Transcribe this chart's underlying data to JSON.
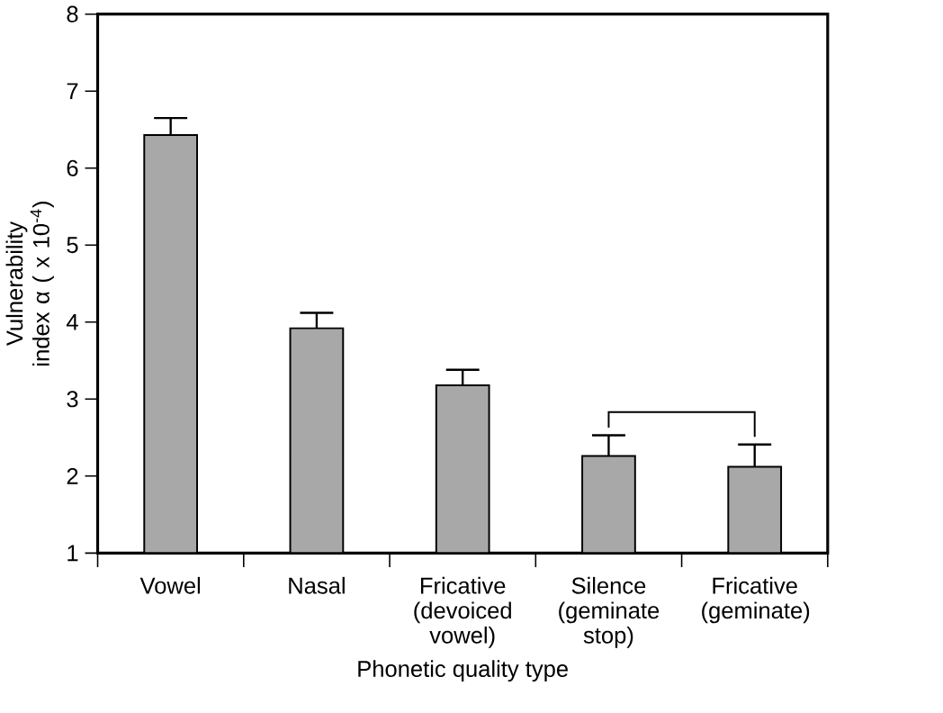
{
  "chart_data": {
    "type": "bar",
    "xlabel": "Phonetic quality type",
    "ylabel": "Vulnerability index α ( x 10$^{-4}$)",
    "categories": [
      "Vowel",
      "Nasal",
      "Fricative (devoiced vowel)",
      "Silence (geminate stop)",
      "Fricative (geminate)"
    ],
    "values": [
      6.43,
      3.92,
      3.18,
      2.26,
      2.12
    ],
    "errors": [
      0.22,
      0.2,
      0.2,
      0.27,
      0.29
    ],
    "color": "#a8a8a8",
    "ylim": [
      1,
      8
    ],
    "yticks": [
      1,
      2,
      3,
      4,
      5,
      6,
      7,
      8
    ],
    "grid": false
  }
}
